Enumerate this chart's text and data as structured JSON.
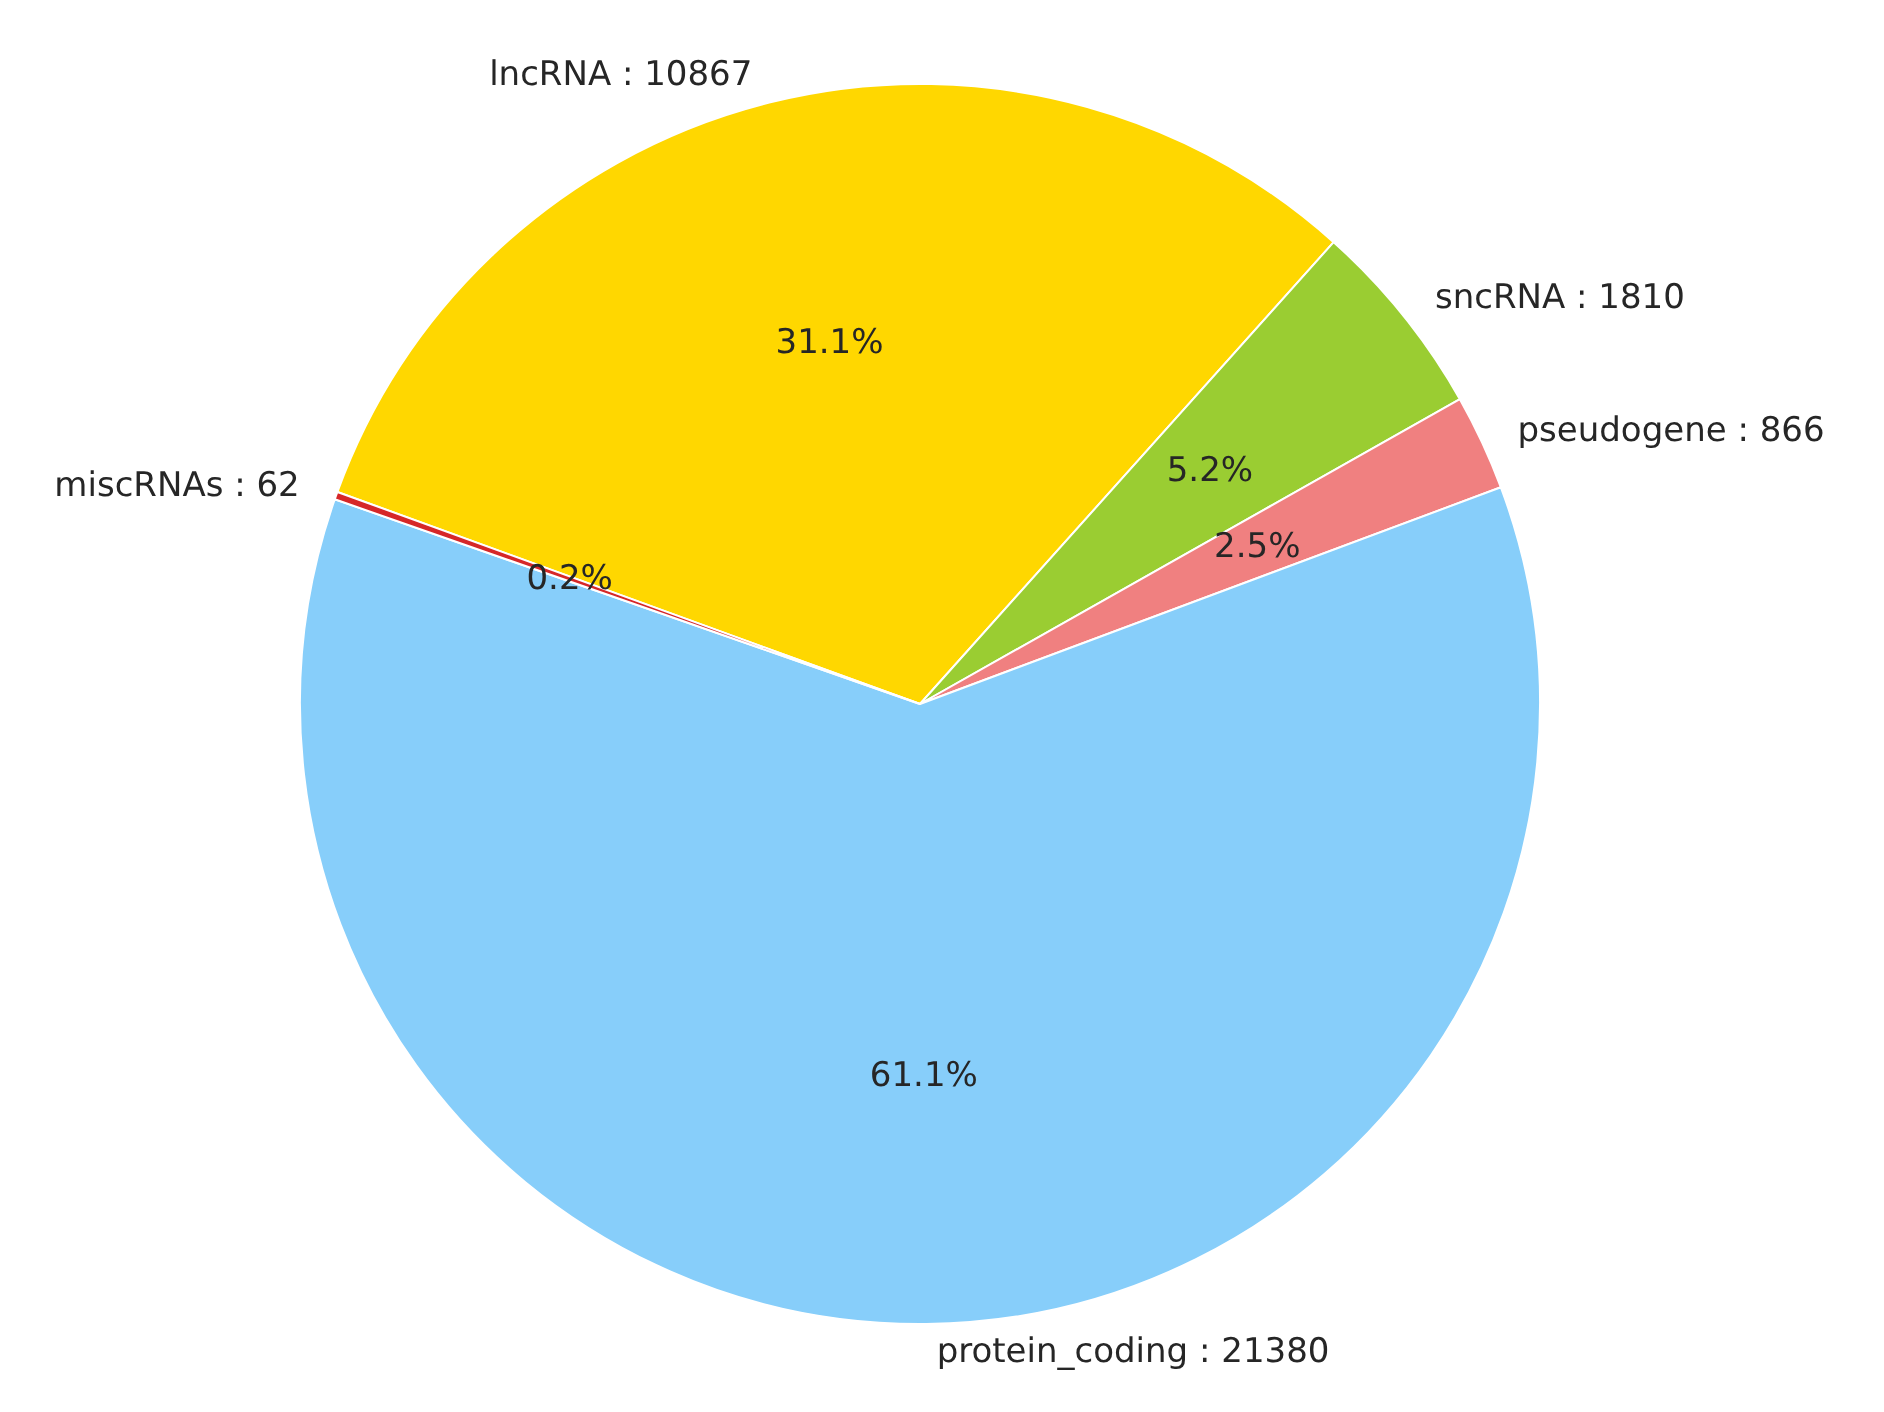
{
  "chart_data": {
    "type": "pie",
    "categories": [
      "lncRNA : 10867",
      "sncRNA : 1810",
      "pseudogene : 866",
      "protein_coding : 21380",
      "miscRNAs : 62"
    ],
    "values": [
      31.1,
      5.2,
      2.5,
      61.1,
      0.2
    ],
    "colors": [
      "#ffd700",
      "#9acd32",
      "#f08080",
      "#87cefa",
      "#d62728"
    ],
    "value_labels": [
      "31.1%",
      "5.2%",
      "2.5%",
      "61.1%",
      "0.2%"
    ]
  }
}
